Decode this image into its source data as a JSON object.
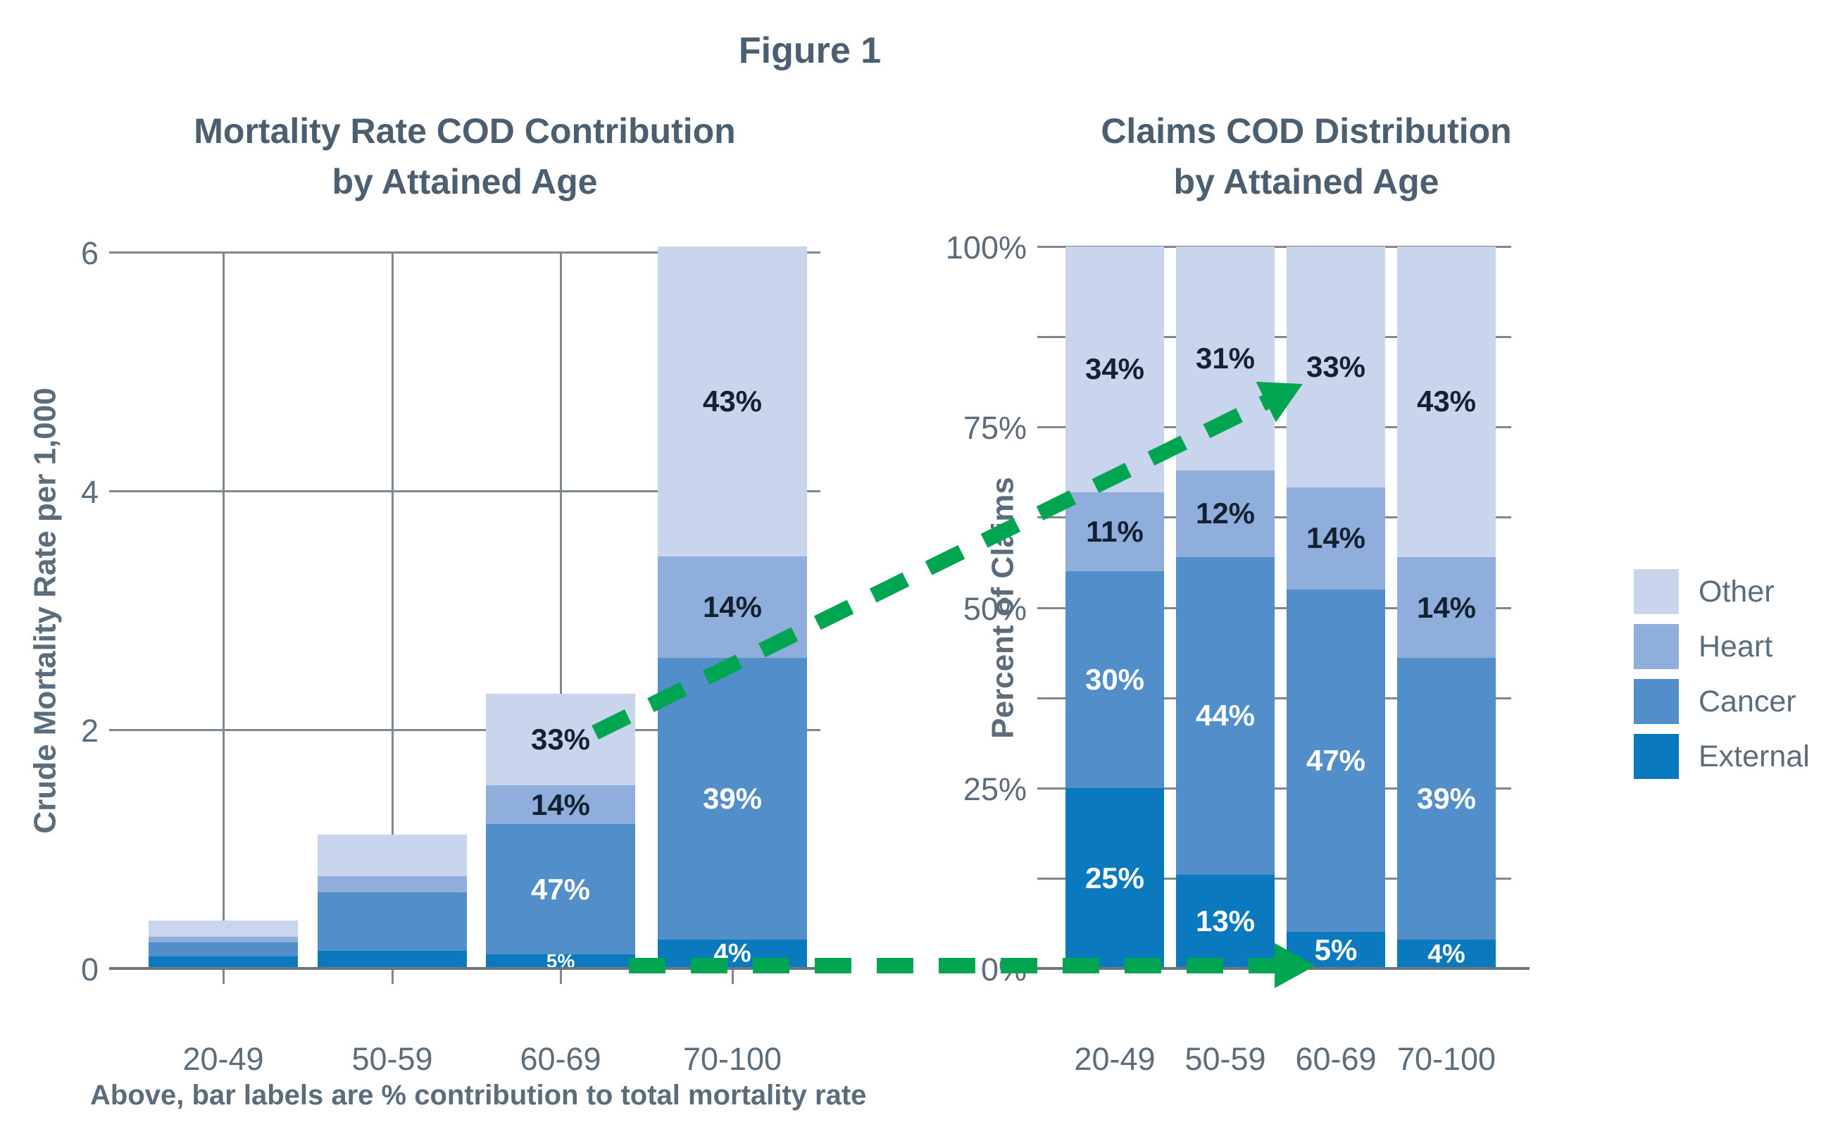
{
  "figure_title": "Figure 1",
  "note": "Above, bar labels are % contribution to total mortality rate",
  "colors": {
    "series": {
      "external": "#0B79BE",
      "cancer": "#528EC9",
      "heart": "#8FAEDB",
      "other": "#C8D5EC"
    },
    "series_label_text": {
      "external": "#FFFFFF",
      "cancer": "#FFFFFF",
      "heart": "#132231",
      "other": "#132231"
    },
    "title_text": "#4C5F70",
    "axis_text": "#5C6C7A",
    "grid": "#7E8891",
    "axis_line": "#6B767F",
    "arrow_green": "#00A551"
  },
  "legend": {
    "position": "right",
    "items": [
      {
        "label": "Other",
        "key": "other"
      },
      {
        "label": "Heart",
        "key": "heart"
      },
      {
        "label": "Cancer",
        "key": "cancer"
      },
      {
        "label": "External",
        "key": "external"
      }
    ]
  },
  "chart_data": [
    {
      "type": "bar",
      "stacked": true,
      "title": "Mortality Rate COD Contribution by Attained Age",
      "title_lines": [
        "Mortality Rate COD Contribution",
        "by Attained Age"
      ],
      "xlabel": "",
      "ylabel": "Crude Mortality Rate per 1,000",
      "ylim": [
        0,
        6
      ],
      "yticks": [
        0,
        2,
        4,
        6
      ],
      "ytick_labels": [
        "0",
        "2",
        "4",
        "6"
      ],
      "grid": "horizontal and vertical category lines",
      "categories": [
        "20-49",
        "50-59",
        "60-69",
        "70-100"
      ],
      "totals": [
        0.4,
        1.12,
        2.3,
        6.05
      ],
      "series": [
        {
          "name": "External",
          "key": "external",
          "pct": [
            25,
            13,
            5,
            4
          ],
          "labels": [
            "",
            "",
            "5%",
            "4%"
          ]
        },
        {
          "name": "Cancer",
          "key": "cancer",
          "pct": [
            30,
            44,
            47,
            39
          ],
          "labels": [
            "",
            "",
            "47%",
            "39%"
          ]
        },
        {
          "name": "Heart",
          "key": "heart",
          "pct": [
            11,
            12,
            14,
            14
          ],
          "labels": [
            "",
            "",
            "14%",
            "14%"
          ]
        },
        {
          "name": "Other",
          "key": "other",
          "pct": [
            34,
            31,
            33,
            43
          ],
          "labels": [
            "",
            "",
            "33%",
            "43%"
          ]
        }
      ],
      "footnote": "Above, bar labels are % contribution to total mortality rate"
    },
    {
      "type": "bar",
      "stacked": true,
      "percent": true,
      "title": "Claims COD Distribution by Attained Age",
      "title_lines": [
        "Claims COD Distribution",
        "by Attained Age"
      ],
      "xlabel": "",
      "ylabel": "Percent of Claims",
      "ylim": [
        0,
        100
      ],
      "yticks": [
        0,
        25,
        50,
        75,
        100
      ],
      "ytick_labels": [
        "0%",
        "25%",
        "50%",
        "75%",
        "100%"
      ],
      "minor_tick_step": 12.5,
      "grid": "horizontal lines every 12.5%",
      "categories": [
        "20-49",
        "50-59",
        "60-69",
        "70-100"
      ],
      "series": [
        {
          "name": "External",
          "key": "external",
          "values": [
            25,
            13,
            5,
            4
          ],
          "labels": [
            "25%",
            "13%",
            "5%",
            "4%"
          ]
        },
        {
          "name": "Cancer",
          "key": "cancer",
          "values": [
            30,
            44,
            47,
            39
          ],
          "labels": [
            "30%",
            "44%",
            "47%",
            "39%"
          ]
        },
        {
          "name": "Heart",
          "key": "heart",
          "values": [
            11,
            12,
            14,
            14
          ],
          "labels": [
            "11%",
            "12%",
            "14%",
            "14%"
          ]
        },
        {
          "name": "Other",
          "key": "other",
          "values": [
            34,
            31,
            33,
            43
          ],
          "labels": [
            "34%",
            "31%",
            "33%",
            "43%"
          ]
        }
      ]
    }
  ],
  "annotations": {
    "arrows": [
      {
        "id": "other-trend",
        "style": "dashed",
        "color": "#00A551",
        "description": "diagonal dashed arrow from 33% Other label in left chart to 33% Other label in right chart"
      },
      {
        "id": "external-trend",
        "style": "dashed",
        "color": "#00A551",
        "description": "horizontal dashed arrow along 0 baseline pointing to 60-69 External segment of right chart"
      }
    ]
  }
}
